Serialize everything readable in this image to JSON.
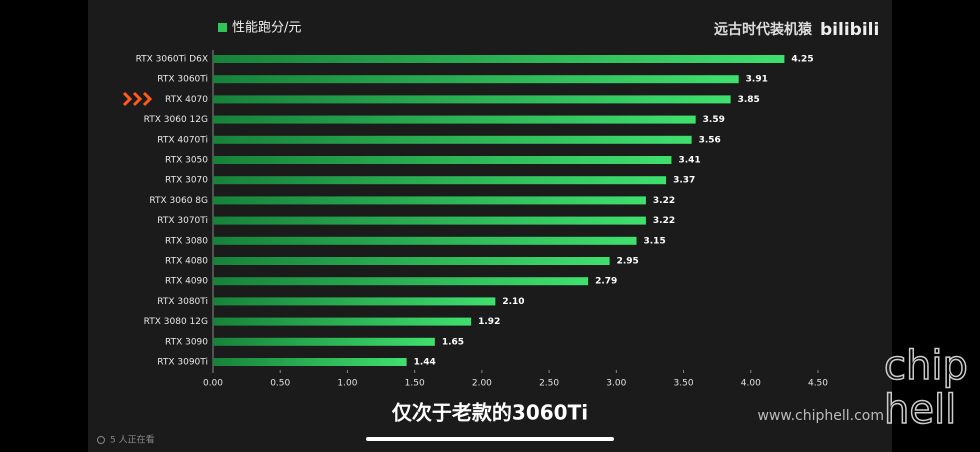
{
  "chart_data": {
    "type": "bar",
    "orientation": "horizontal",
    "categories": [
      "RTX 3060Ti D6X",
      "RTX 3060Ti",
      "RTX 4070",
      "RTX 3060 12G",
      "RTX 4070Ti",
      "RTX 3050",
      "RTX 3070",
      "RTX 3060 8G",
      "RTX 3070Ti",
      "RTX 3080",
      "RTX 4080",
      "RTX 4090",
      "RTX 3080Ti",
      "RTX 3080 12G",
      "RTX 3090",
      "RTX 3090Ti"
    ],
    "series": [
      {
        "name": "性能跑分/元",
        "color": "#2fc55a",
        "values": [
          4.25,
          3.91,
          3.85,
          3.59,
          3.56,
          3.41,
          3.37,
          3.22,
          3.22,
          3.15,
          2.95,
          2.79,
          2.1,
          1.92,
          1.65,
          1.44
        ],
        "value_labels": [
          "4.25",
          "3.91",
          "3.85",
          "3.59",
          "3.56",
          "3.41",
          "3.37",
          "3.22",
          "3.22",
          "3.15",
          "2.95",
          "2.79",
          "2.10",
          "1.92",
          "1.65",
          "1.44"
        ]
      }
    ],
    "xlim": [
      0,
      4.5
    ],
    "xticks": [
      {
        "value": 0,
        "label": "0.00"
      },
      {
        "value": 0.5,
        "label": "0.50"
      },
      {
        "value": 1,
        "label": "1.00"
      },
      {
        "value": 1.5,
        "label": "1.50"
      },
      {
        "value": 2,
        "label": "2.00"
      },
      {
        "value": 2.5,
        "label": "2.50"
      },
      {
        "value": 3,
        "label": "3.00"
      },
      {
        "value": 3.5,
        "label": "3.50"
      },
      {
        "value": 4,
        "label": "4.00"
      },
      {
        "value": 4.5,
        "label": "4.50"
      }
    ],
    "channel": "远古时代装机猿",
    "platform": "bilibili",
    "subtitle": "仅次于老款的3060Ti",
    "watermark": "www.chiphell.com",
    "logo_top": "chip",
    "logo_bottom": "hell",
    "viewers": "5 人正在看"
  }
}
